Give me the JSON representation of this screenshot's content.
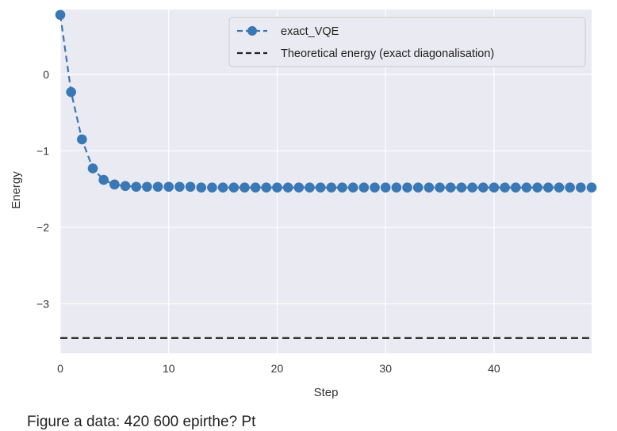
{
  "chart_data": {
    "type": "line",
    "title": "",
    "xlabel": "Step",
    "ylabel": "Energy",
    "xlim": [
      0,
      49
    ],
    "ylim": [
      -3.65,
      0.85
    ],
    "grid": true,
    "legend_position": "top-right",
    "xticks": [
      0,
      10,
      20,
      30,
      40
    ],
    "yticks": [
      0,
      -1,
      -2,
      -3
    ],
    "series": [
      {
        "name": "exact_VQE",
        "style": "dashed line with circle markers",
        "color": "#3a78b5",
        "x": [
          0,
          1,
          2,
          3,
          4,
          5,
          6,
          7,
          8,
          9,
          10,
          11,
          12,
          13,
          14,
          15,
          16,
          17,
          18,
          19,
          20,
          21,
          22,
          23,
          24,
          25,
          26,
          27,
          28,
          29,
          30,
          31,
          32,
          33,
          34,
          35,
          36,
          37,
          38,
          39,
          40,
          41,
          42,
          43,
          44,
          45,
          46,
          47,
          48,
          49
        ],
        "y": [
          0.78,
          -0.23,
          -0.85,
          -1.23,
          -1.38,
          -1.44,
          -1.46,
          -1.47,
          -1.47,
          -1.47,
          -1.47,
          -1.47,
          -1.47,
          -1.48,
          -1.48,
          -1.48,
          -1.48,
          -1.48,
          -1.48,
          -1.48,
          -1.48,
          -1.48,
          -1.48,
          -1.48,
          -1.48,
          -1.48,
          -1.48,
          -1.48,
          -1.48,
          -1.48,
          -1.48,
          -1.48,
          -1.48,
          -1.48,
          -1.48,
          -1.48,
          -1.48,
          -1.48,
          -1.48,
          -1.48,
          -1.48,
          -1.48,
          -1.48,
          -1.48,
          -1.48,
          -1.48,
          -1.48,
          -1.48,
          -1.48,
          -1.48
        ]
      },
      {
        "name": "Theoretical energy (exact diagonalisation)",
        "style": "dashed horizontal line",
        "color": "#222222",
        "x": [
          0,
          49
        ],
        "y": [
          -3.45,
          -3.45
        ]
      }
    ]
  },
  "caption": "Figure a data: 420 600 epirthe? Pt"
}
